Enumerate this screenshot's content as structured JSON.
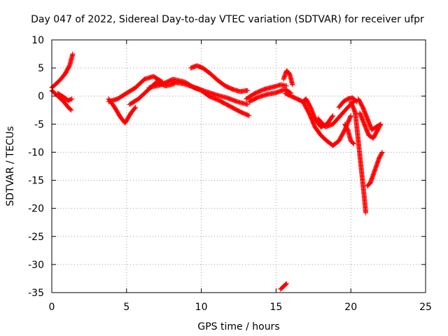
{
  "chart_data": {
    "type": "scatter",
    "title": "Day 047 of 2022, Sidereal Day-to-day VTEC variation (SDTVAR) for receiver ufpr",
    "xlabel": "GPS time / hours",
    "ylabel": "SDTVAR / TECUs",
    "xlim": [
      0,
      25
    ],
    "ylim": [
      -35,
      10
    ],
    "xticks": [
      0,
      5,
      10,
      15,
      20,
      25
    ],
    "yticks": [
      10,
      5,
      0,
      -5,
      -10,
      -15,
      -20,
      -25,
      -30,
      -35
    ],
    "grid": true,
    "legend": "none",
    "marker": "+",
    "color": "#ff0000",
    "tracks": [
      {
        "name": "arc-a1",
        "x": [
          0.0,
          0.3,
          0.6,
          0.9,
          1.2,
          1.4
        ],
        "y": [
          1.5,
          2.2,
          3.0,
          4.0,
          5.5,
          7.5
        ]
      },
      {
        "name": "arc-a2",
        "x": [
          0.0,
          0.4,
          0.8,
          1.1,
          1.3
        ],
        "y": [
          1.0,
          0.0,
          -1.0,
          -2.0,
          -2.5
        ]
      },
      {
        "name": "arc-a3",
        "x": [
          0.4,
          0.8,
          1.1,
          1.35
        ],
        "y": [
          0.5,
          -0.2,
          -0.8,
          -0.5
        ]
      },
      {
        "name": "arc-b1",
        "x": [
          3.8,
          4.2,
          4.6,
          4.9,
          5.3,
          5.6
        ],
        "y": [
          -0.5,
          -2.0,
          -3.8,
          -4.8,
          -3.0,
          -2.0
        ]
      },
      {
        "name": "arc-b2",
        "x": [
          3.8,
          4.4,
          5.0,
          5.6,
          6.2,
          6.8,
          7.4
        ],
        "y": [
          -1.0,
          -0.5,
          0.5,
          1.5,
          3.0,
          3.5,
          2.5
        ]
      },
      {
        "name": "arc-b3",
        "x": [
          5.2,
          5.8,
          6.4,
          7.0,
          7.6,
          8.2
        ],
        "y": [
          -1.5,
          -0.5,
          1.0,
          2.5,
          1.8,
          2.2
        ]
      },
      {
        "name": "arc-c1",
        "x": [
          6.5,
          7.3,
          8.1,
          8.9,
          9.5,
          10.0,
          10.5,
          11.2,
          11.9,
          12.6,
          13.2
        ],
        "y": [
          1.5,
          2.0,
          3.0,
          2.5,
          1.5,
          1.0,
          0.0,
          -0.8,
          -1.8,
          -2.8,
          -3.5
        ]
      },
      {
        "name": "arc-c2",
        "x": [
          8.0,
          8.8,
          9.6,
          10.3,
          11.0,
          11.7,
          12.4,
          13.1
        ],
        "y": [
          2.5,
          2.2,
          1.5,
          0.8,
          0.2,
          -0.3,
          -1.0,
          -1.5
        ]
      },
      {
        "name": "arc-c3",
        "x": [
          9.3,
          9.7,
          10.1,
          10.6,
          11.1,
          11.6,
          12.1,
          12.6,
          13.1
        ],
        "y": [
          5.0,
          5.4,
          5.0,
          4.0,
          2.8,
          1.8,
          1.2,
          0.8,
          1.0
        ]
      },
      {
        "name": "arc-d1",
        "x": [
          13.0,
          13.6,
          14.2,
          14.8,
          15.3,
          15.7
        ],
        "y": [
          -0.5,
          0.5,
          1.2,
          1.6,
          2.0,
          1.8
        ]
      },
      {
        "name": "arc-d2",
        "x": [
          13.2,
          13.8,
          14.4,
          15.0,
          15.6,
          16.0
        ],
        "y": [
          -1.0,
          -0.2,
          0.3,
          0.6,
          1.2,
          0.5
        ]
      },
      {
        "name": "arc-d3",
        "x": [
          15.5,
          15.7,
          15.9,
          16.1
        ],
        "y": [
          3.0,
          4.5,
          4.0,
          2.0
        ]
      },
      {
        "name": "arc-e1",
        "x": [
          15.6,
          16.0,
          16.4,
          16.8,
          17.0,
          17.3,
          17.6,
          18.0,
          18.4,
          18.8
        ],
        "y": [
          0.5,
          0.0,
          -0.5,
          -1.0,
          -0.5,
          -2.0,
          -4.0,
          -5.5,
          -5.0,
          -3.5
        ]
      },
      {
        "name": "arc-e2",
        "x": [
          16.8,
          17.2,
          17.6,
          18.0,
          18.4,
          18.8,
          19.2,
          19.6,
          20.0
        ],
        "y": [
          -1.0,
          -3.0,
          -5.5,
          -7.0,
          -8.0,
          -8.8,
          -8.0,
          -6.0,
          -3.5
        ]
      },
      {
        "name": "arc-e3",
        "x": [
          17.8,
          18.3,
          18.8,
          19.3,
          19.8,
          20.2
        ],
        "y": [
          -4.0,
          -5.5,
          -5.0,
          -3.5,
          -2.0,
          -1.0
        ]
      },
      {
        "name": "arc-f1",
        "x": [
          20.0,
          20.3,
          20.5,
          20.7,
          20.9,
          21.0
        ],
        "y": [
          -1.0,
          -3.0,
          -8.0,
          -13.0,
          -18.0,
          -20.8
        ]
      },
      {
        "name": "arc-f2",
        "x": [
          19.2,
          19.5,
          19.8,
          20.1,
          20.4
        ],
        "y": [
          -2.0,
          -1.0,
          -0.5,
          -0.3,
          -1.0
        ]
      },
      {
        "name": "arc-f3",
        "x": [
          19.6,
          19.8,
          20.0,
          20.2
        ],
        "y": [
          -5.0,
          -6.0,
          -8.0,
          -8.5
        ]
      },
      {
        "name": "arc-g1",
        "x": [
          20.6,
          20.9,
          21.2,
          21.5,
          21.8,
          22.0
        ],
        "y": [
          -3.0,
          -5.0,
          -7.0,
          -7.5,
          -6.0,
          -5.0
        ]
      },
      {
        "name": "arc-g2",
        "x": [
          20.5,
          20.8,
          21.1,
          21.4,
          21.7,
          22.0
        ],
        "y": [
          -0.5,
          -2.0,
          -4.0,
          -6.0,
          -5.5,
          -5.0
        ]
      },
      {
        "name": "arc-h1",
        "x": [
          21.1,
          21.3,
          21.5,
          21.7,
          21.9,
          22.1
        ],
        "y": [
          -16.0,
          -15.5,
          -14.0,
          -12.5,
          -11.0,
          -10.0
        ]
      },
      {
        "name": "arc-i1",
        "x": [
          15.3,
          15.5,
          15.7
        ],
        "y": [
          -34.4,
          -33.9,
          -33.4
        ]
      }
    ]
  }
}
